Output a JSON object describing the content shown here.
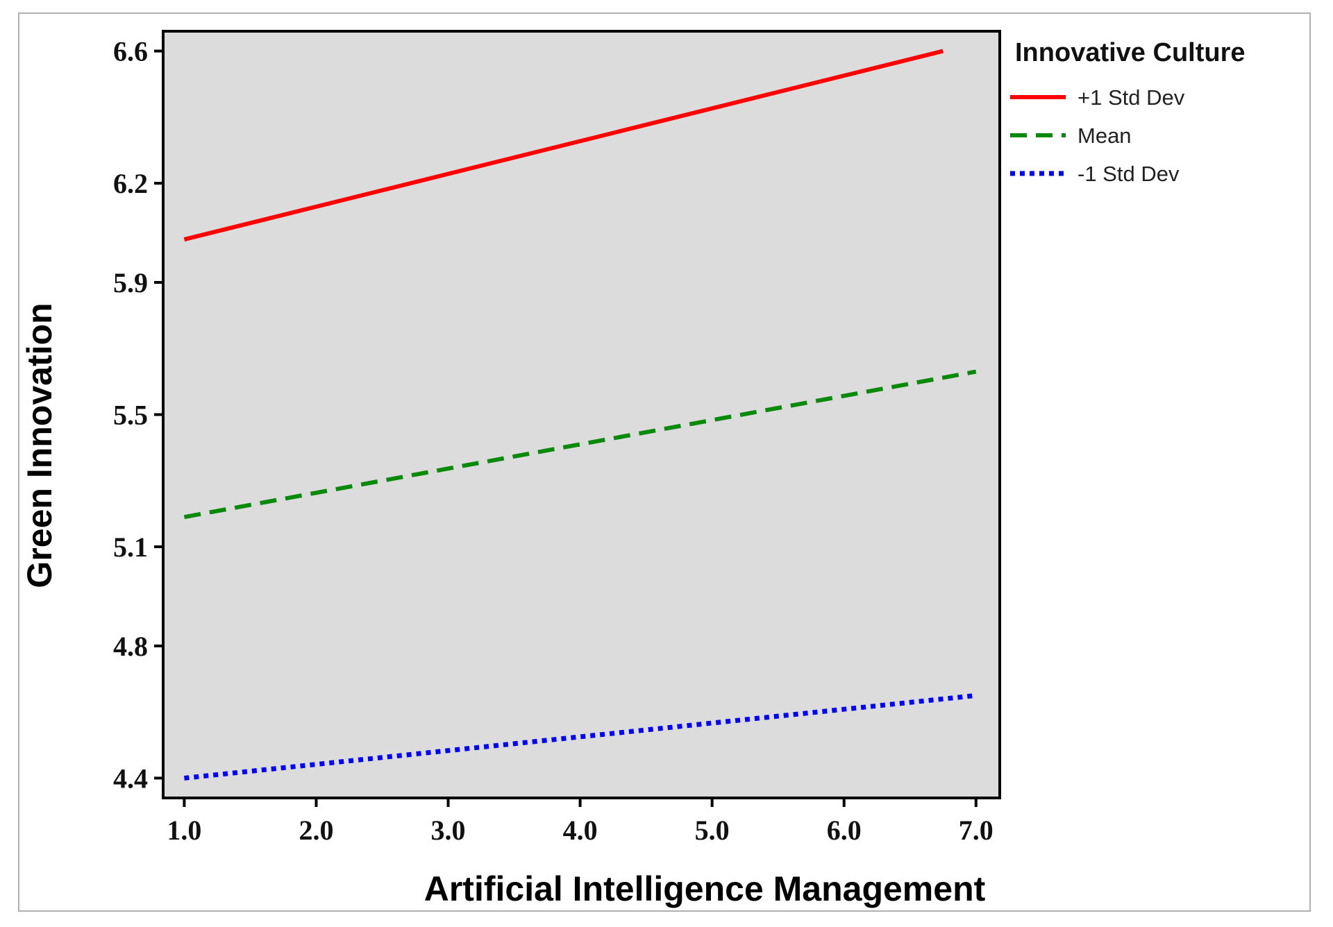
{
  "chart_data": {
    "type": "line",
    "x_axis_title": "Artificial Intelligence Management",
    "y_axis_title": "Green Innovation",
    "x_ticks": [
      "1.0",
      "2.0",
      "3.0",
      "4.0",
      "5.0",
      "6.0",
      "7.0"
    ],
    "y_ticks": [
      "6.6",
      "6.2",
      "5.9",
      "5.5",
      "5.1",
      "4.8",
      "4.4"
    ],
    "y_tick_values": [
      6.6,
      6.2,
      5.9,
      5.5,
      5.1,
      4.8,
      4.4
    ],
    "xlim": [
      0.84,
      7.18
    ],
    "ylim": [
      4.34,
      6.66
    ],
    "legend_title": "Innovative Culture",
    "legend_position": "outside-right-top",
    "plot_background": "#dcdcdc",
    "grid": false,
    "series": [
      {
        "name": "+1 Std Dev",
        "color": "#ff0000",
        "style": "solid",
        "x": [
          1.0,
          6.75
        ],
        "y": [
          6.03,
          6.6
        ]
      },
      {
        "name": "Mean",
        "color": "#0a8a0a",
        "style": "dashed",
        "x": [
          1.0,
          7.0
        ],
        "y": [
          5.19,
          5.63
        ]
      },
      {
        "name": "-1 Std Dev",
        "color": "#0000ff",
        "style": "dotted",
        "x": [
          1.0,
          7.0
        ],
        "y": [
          4.4,
          4.65
        ]
      }
    ]
  }
}
